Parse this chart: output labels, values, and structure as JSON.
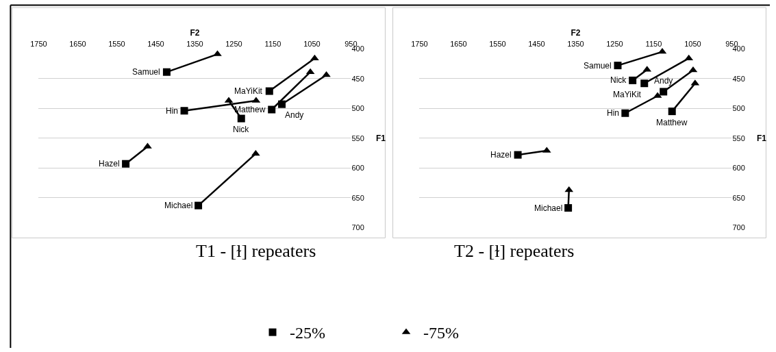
{
  "chart_data": [
    {
      "type": "scatter",
      "title": "T1 - [ɫ] repeaters",
      "xlabel": "F2",
      "ylabel": "F1",
      "xlim": [
        1750,
        950
      ],
      "xticks": [
        1750,
        1650,
        1550,
        1450,
        1350,
        1250,
        1150,
        1050,
        950
      ],
      "ylim": [
        700,
        400
      ],
      "yticks": [
        400,
        450,
        500,
        550,
        600,
        650,
        700
      ],
      "grid": "y",
      "legend": "bottom",
      "series": [
        {
          "name": "-25%",
          "type": "scatter",
          "marker": "square",
          "color": "#000000",
          "x": [
            1422,
            1159,
            1127,
            1153,
            1377,
            1231,
            1527,
            1341
          ],
          "values": [
            439,
            471,
            493,
            502,
            504,
            517,
            593,
            663
          ]
        },
        {
          "name": "-75%",
          "type": "scatter",
          "marker": "triangle",
          "color": "#000000",
          "x": [
            1292,
            1043,
            1013,
            1054,
            1193,
            1263,
            1471,
            1194
          ],
          "values": [
            409,
            416,
            444,
            439,
            487,
            487,
            564,
            576
          ]
        },
        {
          "type": "line",
          "marker": "none",
          "color": "#000000",
          "x": [
            1422,
            1292
          ],
          "values": [
            439,
            409
          ]
        },
        {
          "type": "line",
          "marker": "none",
          "color": "#000000",
          "x": [
            1159,
            1043
          ],
          "values": [
            471,
            416
          ]
        },
        {
          "type": "line",
          "marker": "none",
          "color": "#000000",
          "x": [
            1127,
            1013
          ],
          "values": [
            493,
            444
          ]
        },
        {
          "type": "line",
          "marker": "none",
          "color": "#000000",
          "x": [
            1153,
            1054
          ],
          "values": [
            502,
            439
          ]
        },
        {
          "type": "line",
          "marker": "none",
          "color": "#000000",
          "x": [
            1377,
            1193
          ],
          "values": [
            504,
            487
          ]
        },
        {
          "type": "line",
          "marker": "none",
          "color": "#000000",
          "x": [
            1231,
            1263
          ],
          "values": [
            517,
            487
          ]
        },
        {
          "type": "line",
          "marker": "none",
          "color": "#000000",
          "x": [
            1527,
            1471
          ],
          "values": [
            593,
            564
          ]
        },
        {
          "type": "line",
          "marker": "none",
          "color": "#000000",
          "x": [
            1341,
            1194
          ],
          "values": [
            663,
            576
          ]
        }
      ],
      "annotations": [
        {
          "text": "Samuel",
          "x": 1422,
          "y": 439
        },
        {
          "text": "MaYiKit",
          "x": 1159,
          "y": 471
        },
        {
          "text": "Andy",
          "x": 1127,
          "y": 493
        },
        {
          "text": "Matthew",
          "x": 1153,
          "y": 502
        },
        {
          "text": "Hin",
          "x": 1377,
          "y": 504
        },
        {
          "text": "Nick",
          "x": 1231,
          "y": 517
        },
        {
          "text": "Hazel",
          "x": 1527,
          "y": 593
        },
        {
          "text": "Michael",
          "x": 1341,
          "y": 663
        }
      ]
    },
    {
      "type": "scatter",
      "title": "T2 - [ɫ] repeaters",
      "xlabel": "F2",
      "ylabel": "F1",
      "xlim": [
        1750,
        950
      ],
      "xticks": [
        1750,
        1650,
        1550,
        1450,
        1350,
        1250,
        1150,
        1050,
        950
      ],
      "ylim": [
        700,
        400
      ],
      "yticks": [
        400,
        450,
        500,
        550,
        600,
        650,
        700
      ],
      "grid": "y",
      "series": [
        {
          "name": "-25%",
          "type": "scatter",
          "marker": "square",
          "color": "#000000",
          "x": [
            1242,
            1204,
            1174,
            1125,
            1223,
            1103,
            1498,
            1369
          ],
          "values": [
            428,
            453,
            458,
            472,
            508,
            505,
            578,
            667
          ]
        },
        {
          "name": "-75%",
          "type": "scatter",
          "marker": "triangle",
          "color": "#000000",
          "x": [
            1128,
            1167,
            1060,
            1049,
            1140,
            1044,
            1424,
            1367
          ],
          "values": [
            405,
            435,
            416,
            436,
            479,
            458,
            571,
            637
          ]
        },
        {
          "type": "line",
          "marker": "none",
          "color": "#000000",
          "x": [
            1242,
            1128
          ],
          "values": [
            428,
            405
          ]
        },
        {
          "type": "line",
          "marker": "none",
          "color": "#000000",
          "x": [
            1204,
            1167
          ],
          "values": [
            453,
            435
          ]
        },
        {
          "type": "line",
          "marker": "none",
          "color": "#000000",
          "x": [
            1174,
            1060
          ],
          "values": [
            458,
            416
          ]
        },
        {
          "type": "line",
          "marker": "none",
          "color": "#000000",
          "x": [
            1125,
            1049
          ],
          "values": [
            472,
            436
          ]
        },
        {
          "type": "line",
          "marker": "none",
          "color": "#000000",
          "x": [
            1223,
            1140
          ],
          "values": [
            508,
            479
          ]
        },
        {
          "type": "line",
          "marker": "none",
          "color": "#000000",
          "x": [
            1103,
            1044
          ],
          "values": [
            505,
            458
          ]
        },
        {
          "type": "line",
          "marker": "none",
          "color": "#000000",
          "x": [
            1498,
            1424
          ],
          "values": [
            578,
            571
          ]
        },
        {
          "type": "line",
          "marker": "none",
          "color": "#000000",
          "x": [
            1369,
            1367
          ],
          "values": [
            667,
            637
          ]
        }
      ],
      "annotations": [
        {
          "text": "Samuel",
          "x": 1242,
          "y": 428
        },
        {
          "text": "Nick",
          "x": 1204,
          "y": 453
        },
        {
          "text": "MaYiKit",
          "x": 1174,
          "y": 458
        },
        {
          "text": "Andy",
          "x": 1125,
          "y": 472
        },
        {
          "text": "Hin",
          "x": 1223,
          "y": 508
        },
        {
          "text": "Matthew",
          "x": 1103,
          "y": 505
        },
        {
          "text": "Hazel",
          "x": 1498,
          "y": 578
        },
        {
          "text": "Michael",
          "x": 1369,
          "y": 667
        }
      ]
    }
  ]
}
